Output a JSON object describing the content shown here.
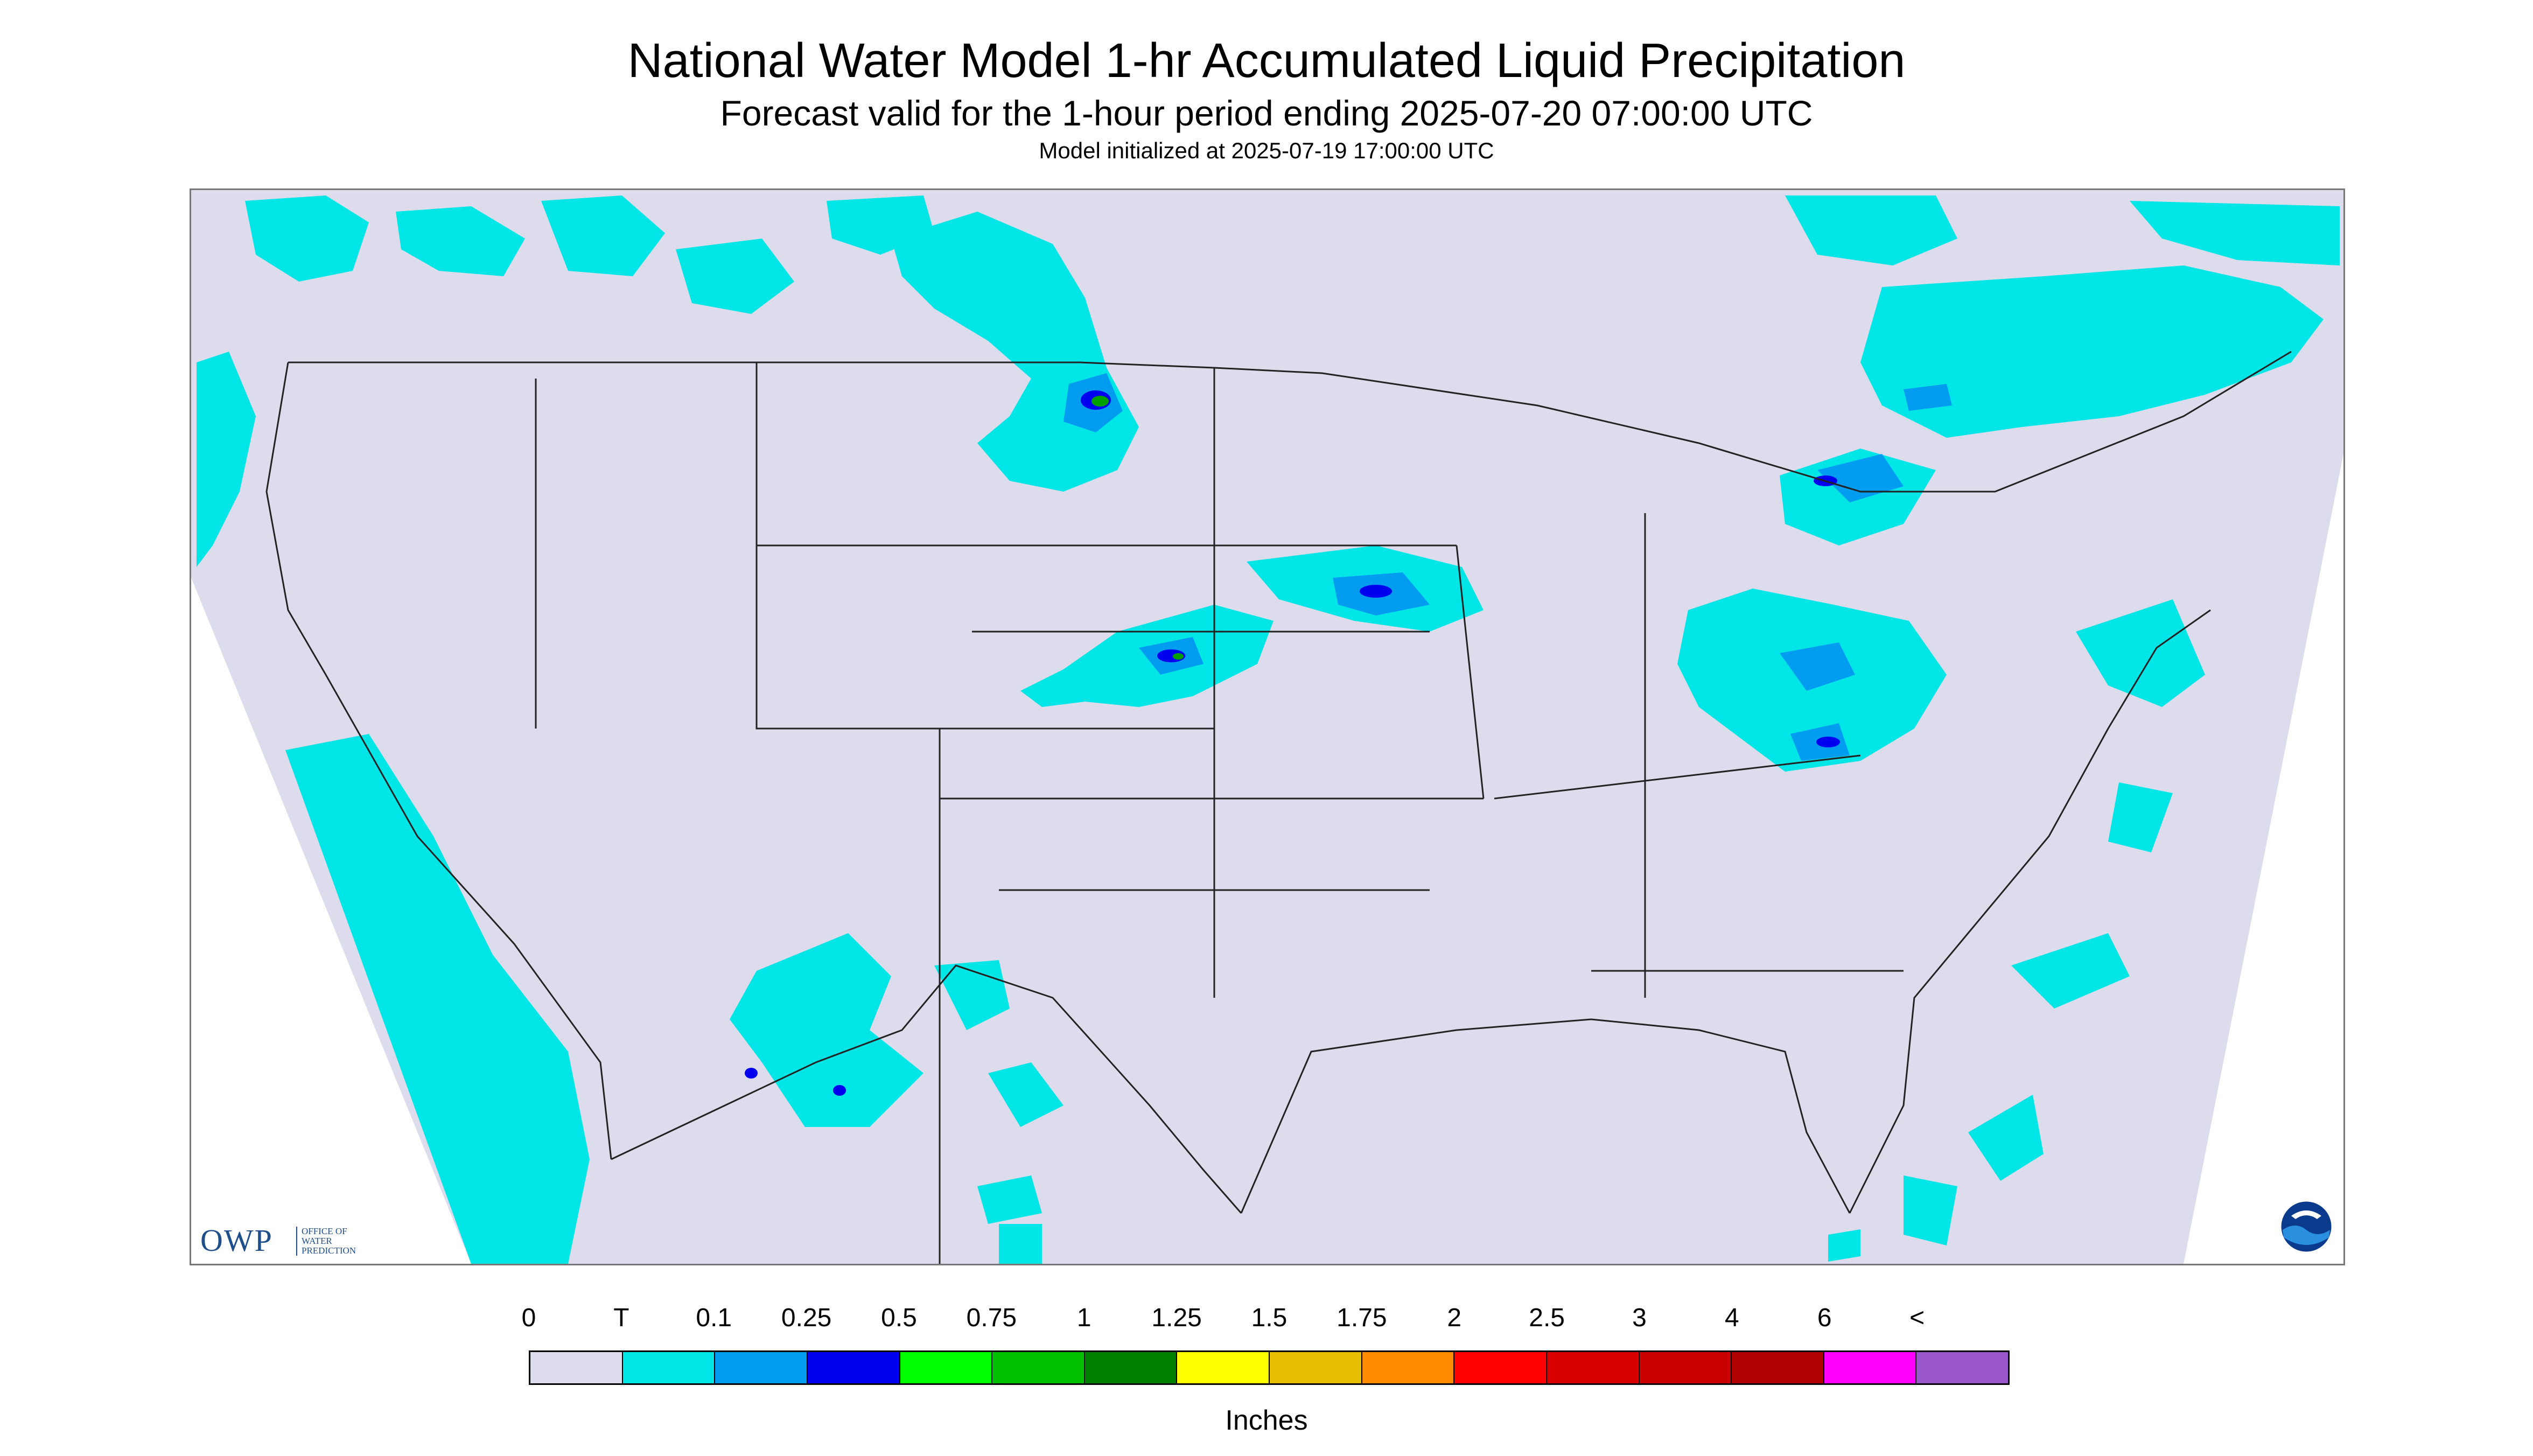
{
  "header": {
    "title": "National Water Model 1-hr Accumulated Liquid Precipitation",
    "subtitle": "Forecast valid for the 1-hour period ending 2025-07-20 07:00:00 UTC",
    "init": "Model initialized at 2025-07-19 17:00:00 UTC"
  },
  "map": {
    "domain_fill": "#dcdcec",
    "precip_light": "#00e5e5",
    "precip_mid": "#009cf0",
    "precip_high": "#0000f0",
    "precip_green": "#00a000",
    "boundary_color": "#222222"
  },
  "logos": {
    "owp_main": "OWP",
    "owp_small": [
      "OFFICE OF",
      "WATER",
      "PREDICTION"
    ],
    "noaa": "NOAA"
  },
  "legend": {
    "labels": [
      "0",
      "T",
      "0.1",
      "0.25",
      "0.5",
      "0.75",
      "1",
      "1.25",
      "1.5",
      "1.75",
      "2",
      "2.5",
      "3",
      "4",
      "6",
      "<"
    ],
    "colors": [
      "#dcdcec",
      "#00e5e5",
      "#009cf0",
      "#0000f0",
      "#00ff00",
      "#00c000",
      "#008000",
      "#ffff00",
      "#e5bf00",
      "#ff8c00",
      "#ff0000",
      "#d80000",
      "#c80000",
      "#b00000",
      "#ff00ff",
      "#9955cc"
    ],
    "units": "Inches"
  }
}
